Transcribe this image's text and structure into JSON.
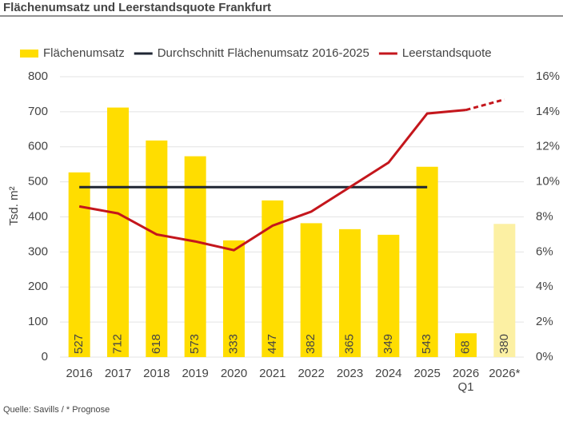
{
  "chart_data": {
    "type": "bar_line",
    "title": "Flächenumsatz und Leerstandsquote Frankfurt",
    "source": "Quelle: Savills / * Prognose",
    "y_label": "Tsd. m²",
    "categories": [
      "2016",
      "2017",
      "2018",
      "2019",
      "2020",
      "2021",
      "2022",
      "2023",
      "2024",
      "2025",
      "2026 Q1",
      "2026*"
    ],
    "series": [
      {
        "name": "Flächenumsatz",
        "type": "bar",
        "color": "#ffdd00",
        "colors": [
          "#ffdd00",
          "#ffdd00",
          "#ffdd00",
          "#ffdd00",
          "#ffdd00",
          "#ffdd00",
          "#ffdd00",
          "#ffdd00",
          "#ffdd00",
          "#ffdd00",
          "#ffdd00",
          "#fcf0a3"
        ],
        "values": [
          527,
          712,
          618,
          573,
          333,
          447,
          382,
          365,
          349,
          543,
          68,
          380
        ]
      },
      {
        "name": "Durchschnitt Flächenumsatz 2016-2025",
        "type": "line",
        "color": "#1f2633",
        "values": [
          485,
          485,
          485,
          485,
          485,
          485,
          485,
          485,
          485,
          485,
          null,
          null
        ]
      },
      {
        "name": "Leerstandsquote",
        "type": "line",
        "color": "#c4161c",
        "axis": "y2",
        "dashed_from": 10,
        "values": [
          8.6,
          8.2,
          7.0,
          6.6,
          6.1,
          7.5,
          8.3,
          9.7,
          11.1,
          13.9,
          14.1,
          14.7
        ]
      }
    ],
    "ylim": [
      0,
      800
    ],
    "yticks": [
      0,
      100,
      200,
      300,
      400,
      500,
      600,
      700,
      800
    ],
    "y2lim": [
      0,
      16
    ],
    "y2ticks": [
      {
        "value": 0,
        "label": "0%"
      },
      {
        "value": 2,
        "label": "2%"
      },
      {
        "value": 4,
        "label": "4%"
      },
      {
        "value": 6,
        "label": "6%"
      },
      {
        "value": 8,
        "label": "8%"
      },
      {
        "value": 10,
        "label": "10%"
      },
      {
        "value": 12,
        "label": "12%"
      },
      {
        "value": 14,
        "label": "14%"
      },
      {
        "value": 16,
        "label": "16%"
      }
    ],
    "grid": true
  }
}
